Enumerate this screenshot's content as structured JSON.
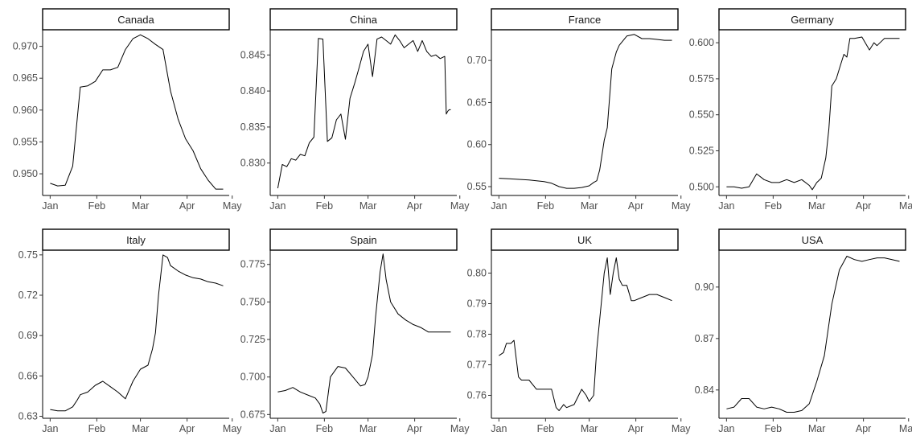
{
  "chart_data": [
    {
      "type": "line",
      "title": "Canada",
      "x_ticks": [
        "Jan",
        "Feb",
        "Mar",
        "Apr",
        "May"
      ],
      "x_range": [
        -5,
        119
      ],
      "y_ticks": [
        0.95,
        0.955,
        0.96,
        0.965,
        0.97
      ],
      "y_tick_labels": [
        "0.950",
        "0.955",
        "0.960",
        "0.965",
        "0.970"
      ],
      "ylim": [
        0.9466,
        0.9726
      ],
      "x": [
        0,
        5,
        10,
        15,
        20,
        25,
        30,
        35,
        40,
        45,
        50,
        55,
        60,
        65,
        70,
        75,
        80,
        85,
        90,
        95,
        100,
        105,
        110,
        115
      ],
      "values": [
        0.9485,
        0.9481,
        0.9482,
        0.9512,
        0.9636,
        0.9638,
        0.9645,
        0.9663,
        0.9663,
        0.9667,
        0.9695,
        0.9712,
        0.9718,
        0.9712,
        0.9703,
        0.9695,
        0.963,
        0.9586,
        0.9555,
        0.9536,
        0.9508,
        0.949,
        0.9476,
        0.9476
      ]
    },
    {
      "type": "line",
      "title": "China",
      "x_ticks": [
        "Jan",
        "Feb",
        "Mar",
        "Apr",
        "May"
      ],
      "x_range": [
        -5,
        119
      ],
      "y_ticks": [
        0.83,
        0.835,
        0.84,
        0.845
      ],
      "y_tick_labels": [
        "0.830",
        "0.835",
        "0.840",
        "0.845"
      ],
      "ylim": [
        0.8255,
        0.8485
      ],
      "x": [
        0,
        3,
        6,
        9,
        12,
        15,
        18,
        21,
        24,
        27,
        30,
        33,
        36,
        39,
        42,
        45,
        48,
        51,
        54,
        57,
        60,
        63,
        66,
        69,
        72,
        75,
        78,
        81,
        84,
        87,
        90,
        93,
        96,
        99,
        102,
        105,
        108,
        111,
        112,
        113,
        114,
        115
      ],
      "values": [
        0.8265,
        0.8298,
        0.8295,
        0.8306,
        0.8304,
        0.8312,
        0.831,
        0.8328,
        0.8336,
        0.8473,
        0.8472,
        0.833,
        0.8335,
        0.836,
        0.8368,
        0.8333,
        0.839,
        0.841,
        0.8432,
        0.8455,
        0.8465,
        0.842,
        0.8472,
        0.8475,
        0.847,
        0.8465,
        0.8478,
        0.847,
        0.846,
        0.8465,
        0.847,
        0.8455,
        0.847,
        0.8455,
        0.8448,
        0.845,
        0.8445,
        0.8448,
        0.8368,
        0.8372,
        0.8374,
        0.8374
      ]
    },
    {
      "type": "line",
      "title": "France",
      "x_ticks": [
        "Jan",
        "Feb",
        "Mar",
        "Apr",
        "May"
      ],
      "x_range": [
        -5,
        119
      ],
      "y_ticks": [
        0.55,
        0.6,
        0.65,
        0.7
      ],
      "y_tick_labels": [
        "0.55",
        "0.60",
        "0.65",
        "0.70"
      ],
      "ylim": [
        0.5395,
        0.7365
      ],
      "x": [
        0,
        10,
        20,
        30,
        35,
        40,
        45,
        50,
        55,
        60,
        63,
        65,
        67,
        70,
        72,
        75,
        78,
        80,
        85,
        90,
        95,
        100,
        105,
        110,
        115
      ],
      "values": [
        0.56,
        0.559,
        0.558,
        0.556,
        0.554,
        0.55,
        0.548,
        0.548,
        0.549,
        0.551,
        0.555,
        0.557,
        0.57,
        0.605,
        0.62,
        0.69,
        0.71,
        0.718,
        0.729,
        0.731,
        0.726,
        0.726,
        0.725,
        0.724,
        0.724
      ]
    },
    {
      "type": "line",
      "title": "Germany",
      "x_ticks": [
        "Jan",
        "Feb",
        "Mar",
        "Apr",
        "May"
      ],
      "x_range": [
        -5,
        119
      ],
      "y_ticks": [
        0.5,
        0.525,
        0.55,
        0.575,
        0.6
      ],
      "y_tick_labels": [
        "0.500",
        "0.525",
        "0.550",
        "0.575",
        "0.600"
      ],
      "ylim": [
        0.494,
        0.609
      ],
      "x": [
        0,
        5,
        10,
        15,
        20,
        25,
        30,
        35,
        40,
        45,
        50,
        55,
        57,
        60,
        63,
        66,
        68,
        70,
        73,
        75,
        78,
        80,
        82,
        85,
        90,
        95,
        98,
        100,
        105,
        110,
        115
      ],
      "values": [
        0.5,
        0.5,
        0.499,
        0.5,
        0.509,
        0.505,
        0.503,
        0.503,
        0.505,
        0.503,
        0.505,
        0.501,
        0.498,
        0.503,
        0.506,
        0.52,
        0.54,
        0.57,
        0.575,
        0.582,
        0.592,
        0.59,
        0.603,
        0.603,
        0.604,
        0.595,
        0.6,
        0.598,
        0.603,
        0.603,
        0.603
      ]
    },
    {
      "type": "line",
      "title": "Italy",
      "x_ticks": [
        "Jan",
        "Feb",
        "Mar",
        "Apr",
        "May"
      ],
      "x_range": [
        -5,
        119
      ],
      "y_ticks": [
        0.63,
        0.66,
        0.69,
        0.72,
        0.75
      ],
      "y_tick_labels": [
        "0.63",
        "0.66",
        "0.69",
        "0.72",
        "0.75"
      ],
      "ylim": [
        0.6285,
        0.7535
      ],
      "x": [
        0,
        5,
        10,
        15,
        18,
        20,
        25,
        30,
        35,
        40,
        45,
        50,
        55,
        60,
        65,
        68,
        70,
        72,
        75,
        78,
        80,
        85,
        90,
        95,
        100,
        105,
        110,
        115
      ],
      "values": [
        0.635,
        0.634,
        0.634,
        0.637,
        0.642,
        0.646,
        0.648,
        0.653,
        0.656,
        0.652,
        0.648,
        0.643,
        0.656,
        0.665,
        0.668,
        0.68,
        0.692,
        0.72,
        0.75,
        0.748,
        0.742,
        0.738,
        0.735,
        0.733,
        0.732,
        0.73,
        0.729,
        0.727
      ]
    },
    {
      "type": "line",
      "title": "Spain",
      "x_ticks": [
        "Jan",
        "Feb",
        "Mar",
        "Apr",
        "May"
      ],
      "x_range": [
        -5,
        119
      ],
      "y_ticks": [
        0.675,
        0.7,
        0.725,
        0.75,
        0.775
      ],
      "y_tick_labels": [
        "0.675",
        "0.700",
        "0.725",
        "0.750",
        "0.775"
      ],
      "ylim": [
        0.6725,
        0.7845
      ],
      "x": [
        0,
        5,
        10,
        15,
        20,
        25,
        28,
        30,
        32,
        35,
        40,
        45,
        50,
        55,
        58,
        60,
        63,
        65,
        68,
        70,
        72,
        75,
        80,
        85,
        90,
        95,
        100,
        105,
        110,
        115
      ],
      "values": [
        0.69,
        0.691,
        0.693,
        0.69,
        0.688,
        0.686,
        0.682,
        0.676,
        0.677,
        0.7,
        0.707,
        0.706,
        0.7,
        0.694,
        0.695,
        0.7,
        0.715,
        0.74,
        0.77,
        0.782,
        0.765,
        0.75,
        0.742,
        0.738,
        0.735,
        0.733,
        0.73,
        0.73,
        0.73,
        0.73
      ]
    },
    {
      "type": "line",
      "title": "UK",
      "x_ticks": [
        "Jan",
        "Feb",
        "Mar",
        "Apr",
        "May"
      ],
      "x_range": [
        -5,
        119
      ],
      "y_ticks": [
        0.76,
        0.77,
        0.78,
        0.79,
        0.8
      ],
      "y_tick_labels": [
        "0.76",
        "0.77",
        "0.78",
        "0.79",
        "0.80"
      ],
      "ylim": [
        0.7525,
        0.8075
      ],
      "x": [
        0,
        3,
        5,
        8,
        10,
        13,
        15,
        20,
        25,
        30,
        35,
        38,
        40,
        43,
        45,
        50,
        55,
        58,
        60,
        63,
        65,
        68,
        70,
        72,
        74,
        76,
        78,
        80,
        82,
        85,
        88,
        90,
        95,
        100,
        105,
        110,
        115
      ],
      "values": [
        0.773,
        0.774,
        0.777,
        0.777,
        0.778,
        0.766,
        0.765,
        0.765,
        0.762,
        0.762,
        0.762,
        0.756,
        0.755,
        0.757,
        0.756,
        0.757,
        0.762,
        0.76,
        0.758,
        0.76,
        0.775,
        0.79,
        0.8,
        0.805,
        0.793,
        0.8,
        0.805,
        0.798,
        0.796,
        0.796,
        0.791,
        0.791,
        0.792,
        0.793,
        0.793,
        0.792,
        0.791
      ]
    },
    {
      "type": "line",
      "title": "USA",
      "x_ticks": [
        "Jan",
        "Feb",
        "Mar",
        "Apr",
        "May"
      ],
      "x_range": [
        -5,
        119
      ],
      "y_ticks": [
        0.84,
        0.87,
        0.9
      ],
      "y_tick_labels": [
        "0.84",
        "0.87",
        "0.90"
      ],
      "ylim": [
        0.8235,
        0.9215
      ],
      "x": [
        0,
        5,
        10,
        15,
        20,
        25,
        30,
        35,
        40,
        45,
        50,
        55,
        60,
        65,
        70,
        75,
        80,
        85,
        90,
        95,
        100,
        105,
        110,
        115
      ],
      "values": [
        0.829,
        0.83,
        0.835,
        0.835,
        0.83,
        0.829,
        0.83,
        0.829,
        0.827,
        0.827,
        0.828,
        0.832,
        0.845,
        0.86,
        0.89,
        0.91,
        0.918,
        0.916,
        0.915,
        0.916,
        0.917,
        0.917,
        0.916,
        0.915
      ]
    }
  ]
}
